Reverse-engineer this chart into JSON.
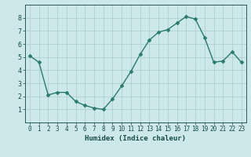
{
  "x": [
    0,
    1,
    2,
    3,
    4,
    5,
    6,
    7,
    8,
    9,
    10,
    11,
    12,
    13,
    14,
    15,
    16,
    17,
    18,
    19,
    20,
    21,
    22,
    23
  ],
  "y": [
    5.1,
    4.6,
    2.1,
    2.3,
    2.3,
    1.6,
    1.3,
    1.1,
    1.0,
    1.8,
    2.8,
    3.9,
    5.2,
    6.3,
    6.9,
    7.1,
    7.6,
    8.1,
    7.9,
    6.5,
    4.6,
    4.7,
    5.4,
    4.6
  ],
  "xlabel": "Humidex (Indice chaleur)",
  "ylim": [
    0,
    9
  ],
  "xlim": [
    -0.5,
    23.5
  ],
  "yticks": [
    1,
    2,
    3,
    4,
    5,
    6,
    7,
    8
  ],
  "xticks": [
    0,
    1,
    2,
    3,
    4,
    5,
    6,
    7,
    8,
    9,
    10,
    11,
    12,
    13,
    14,
    15,
    16,
    17,
    18,
    19,
    20,
    21,
    22,
    23
  ],
  "line_color": "#2a7a6e",
  "marker_color": "#2a7a6e",
  "bg_color": "#cce8e8",
  "grid_color": "#aacccc",
  "spine_color": "#2a5a5a",
  "tick_label_color": "#1a4a4a",
  "xlabel_color": "#1a4a4a",
  "line_width": 1.0,
  "marker_size": 2.5,
  "tick_fontsize": 5.5,
  "xlabel_fontsize": 6.5
}
